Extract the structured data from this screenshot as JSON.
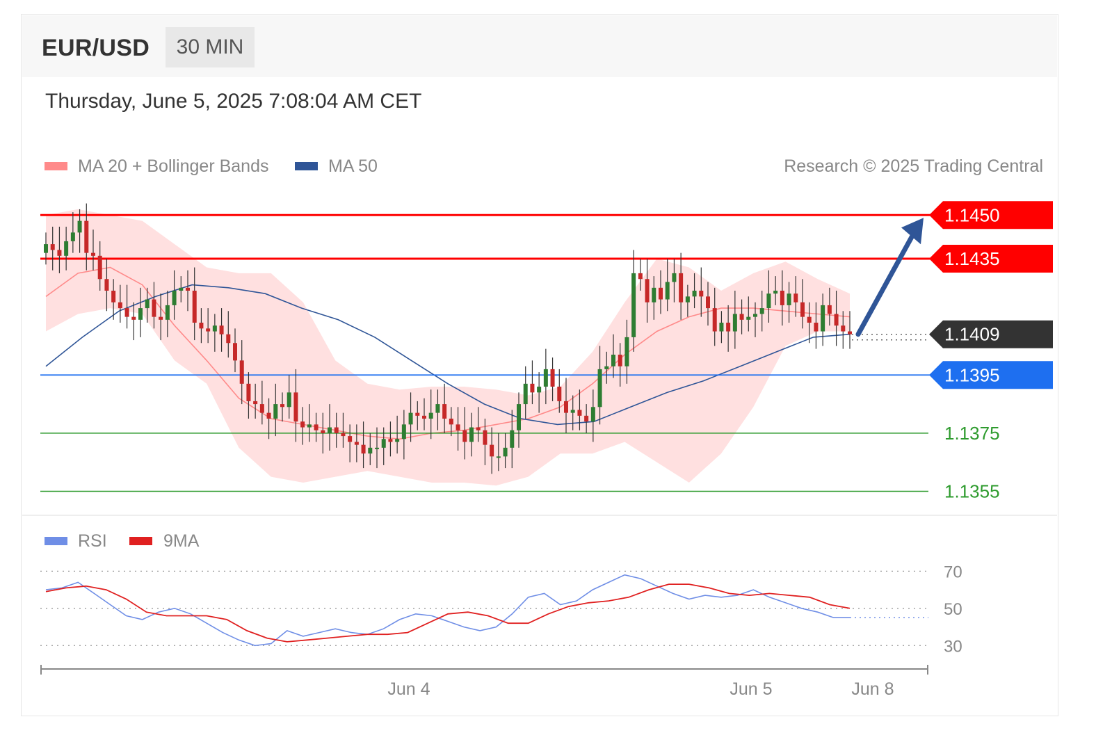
{
  "header": {
    "symbol": "EUR/USD",
    "timeframe": "30 MIN",
    "timestamp": "Thursday, June 5, 2025 7:08:04 AM CET"
  },
  "legend": {
    "ma20_bb": "MA 20 + Bollinger Bands",
    "ma50": "MA 50",
    "credit": "Research © 2025 Trading Central",
    "rsi": "RSI",
    "rsi_ma": "9MA"
  },
  "colors": {
    "resistance": "#ff0000",
    "pivot": "#1e6ff0",
    "support": "#2e9b2e",
    "last": "#333333",
    "bull": "#2e7d32",
    "bear": "#c62828",
    "ma20": "#ff8a8a",
    "ma50": "#2f5597",
    "rsi": "#6f8ee6",
    "rsi_ma": "#e02020",
    "arrow": "#2f5597"
  },
  "chart_data": [
    {
      "type": "candlestick",
      "ylim": [
        1.1347,
        1.1457
      ],
      "levels": [
        {
          "value": 1.145,
          "label": "1.1450",
          "kind": "resistance"
        },
        {
          "value": 1.1435,
          "label": "1.1435",
          "kind": "resistance"
        },
        {
          "value": 1.1409,
          "label": "1.1409",
          "kind": "last"
        },
        {
          "value": 1.1395,
          "label": "1.1395",
          "kind": "pivot"
        },
        {
          "value": 1.1375,
          "label": "1.1375",
          "kind": "support"
        },
        {
          "value": 1.1355,
          "label": "1.1355",
          "kind": "support"
        }
      ],
      "forecast": {
        "from": 1.1409,
        "to": 1.145,
        "direction": "up"
      },
      "x_ticks": [
        "Jun 4",
        "Jun 5",
        "Jun 8"
      ],
      "key_points": {
        "close": [
          1.144,
          1.1438,
          1.1436,
          1.1441,
          1.1444,
          1.1448,
          1.1437,
          1.1436,
          1.1428,
          1.1424,
          1.142,
          1.1418,
          1.1415,
          1.1414,
          1.1418,
          1.1421,
          1.1415,
          1.1414,
          1.1419,
          1.1424,
          1.1425,
          1.1424,
          1.1413,
          1.1411,
          1.141,
          1.1412,
          1.1409,
          1.1406,
          1.14,
          1.1392,
          1.1386,
          1.1385,
          1.1382,
          1.138,
          1.1385,
          1.1384,
          1.1389,
          1.1379,
          1.1377,
          1.1378,
          1.1376,
          1.1375,
          1.1377,
          1.1375,
          1.1374,
          1.1372,
          1.1371,
          1.1368,
          1.137,
          1.137,
          1.1373,
          1.1372,
          1.1373,
          1.1378,
          1.1382,
          1.1381,
          1.138,
          1.1382,
          1.1385,
          1.138,
          1.1378,
          1.1376,
          1.1372,
          1.1377,
          1.1376,
          1.1371,
          1.1367,
          1.1367,
          1.137,
          1.1376,
          1.1385,
          1.1392,
          1.1389,
          1.1391,
          1.1397,
          1.1391,
          1.1386,
          1.1382,
          1.1383,
          1.1381,
          1.1379,
          1.1384,
          1.1397,
          1.1398,
          1.1402,
          1.1398,
          1.1408,
          1.143,
          1.1428,
          1.142,
          1.1425,
          1.1421,
          1.1427,
          1.143,
          1.142,
          1.1422,
          1.1424,
          1.1422,
          1.1418,
          1.141,
          1.1413,
          1.141,
          1.1416,
          1.1414,
          1.1415,
          1.1416,
          1.1418,
          1.1423,
          1.1424,
          1.1419,
          1.1423,
          1.142,
          1.1415,
          1.1413,
          1.141,
          1.1419,
          1.1416,
          1.1412,
          1.141,
          1.1409
        ],
        "bollinger_upper": [
          1.145,
          1.1452,
          1.145,
          1.1448,
          1.144,
          1.1432,
          1.143,
          1.143,
          1.142,
          1.14,
          1.1392,
          1.139,
          1.1391,
          1.1391,
          1.139,
          1.1388,
          1.1391,
          1.1403,
          1.142,
          1.1435,
          1.1432,
          1.1424,
          1.143,
          1.1434,
          1.1428,
          1.1423
        ],
        "bollinger_lower": [
          1.141,
          1.1416,
          1.1418,
          1.1416,
          1.14,
          1.1392,
          1.137,
          1.136,
          1.1358,
          1.136,
          1.1362,
          1.136,
          1.1358,
          1.1358,
          1.1357,
          1.136,
          1.1368,
          1.1368,
          1.1372,
          1.1365,
          1.1358,
          1.1368,
          1.1384,
          1.1405,
          1.141,
          1.141
        ],
        "ma20": [
          1.1422,
          1.143,
          1.1432,
          1.1426,
          1.1412,
          1.14,
          1.1387,
          1.138,
          1.1378,
          1.1376,
          1.1374,
          1.1373,
          1.1375,
          1.1376,
          1.1378,
          1.138,
          1.1384,
          1.1392,
          1.1402,
          1.141,
          1.1415,
          1.1418,
          1.1418,
          1.1417,
          1.1416,
          1.1415
        ],
        "ma50": [
          1.1398,
          1.1408,
          1.1417,
          1.1422,
          1.1426,
          1.1425,
          1.1423,
          1.1418,
          1.1414,
          1.1408,
          1.14,
          1.1392,
          1.1385,
          1.138,
          1.1378,
          1.1379,
          1.1384,
          1.1389,
          1.1393,
          1.1398,
          1.1403,
          1.1408,
          1.1409
        ]
      }
    },
    {
      "type": "line",
      "series": [
        {
          "name": "RSI",
          "values": [
            60,
            61,
            64,
            58,
            52,
            46,
            44,
            48,
            50,
            47,
            42,
            37,
            33,
            30,
            31,
            38,
            35,
            37,
            39,
            37,
            36,
            39,
            44,
            47,
            46,
            43,
            40,
            38,
            40,
            47,
            56,
            58,
            52,
            54,
            60,
            64,
            68,
            66,
            62,
            58,
            55,
            57,
            56,
            57,
            60,
            56,
            53,
            50,
            48,
            45,
            45
          ]
        },
        {
          "name": "9MA",
          "values": [
            59,
            61,
            62,
            60,
            55,
            48,
            46,
            46,
            46,
            44,
            38,
            34,
            32,
            33,
            34,
            35,
            36,
            36,
            37,
            42,
            47,
            48,
            46,
            42,
            42,
            47,
            51,
            53,
            54,
            56,
            60,
            63,
            63,
            61,
            58,
            57,
            58,
            57,
            56,
            52,
            50
          ]
        }
      ],
      "levels": [
        70,
        50,
        30
      ],
      "y_ticks": [
        "70",
        "50",
        "30"
      ],
      "ylim": [
        20,
        78
      ]
    }
  ]
}
